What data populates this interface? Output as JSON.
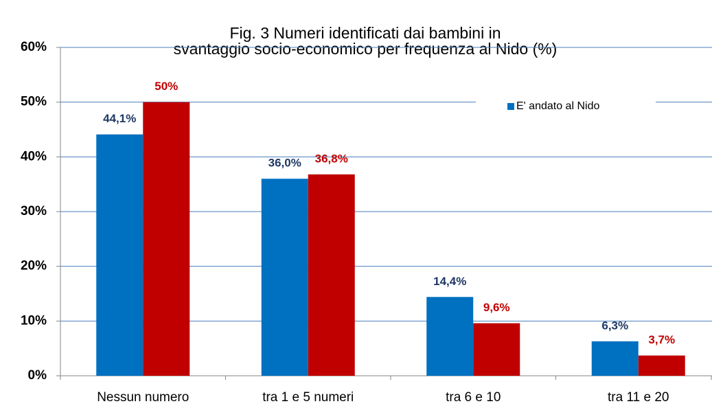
{
  "chart_data": {
    "type": "bar",
    "title": [
      "Fig. 3 Numeri identificati dai bambini in",
      "svantaggio socio-economico  per frequenza al Nido (%)"
    ],
    "categories": [
      "Nessun numero",
      "tra 1 e 5 numeri",
      "tra 6 e 10",
      "tra 11 e 20"
    ],
    "series": [
      {
        "name": "E' andato al Nido",
        "color": "#0070c0",
        "label_color": "#1f3864",
        "values": [
          44.1,
          36.0,
          14.4,
          6.3
        ],
        "value_labels": [
          "44,1%",
          "36,0%",
          "14,4%",
          "6,3%"
        ]
      },
      {
        "color": "#c00000",
        "label_color": "#c00000",
        "values": [
          50,
          36.8,
          9.6,
          3.7
        ],
        "value_labels": [
          "50%",
          "36,8%",
          "9,6%",
          "3,7%"
        ]
      }
    ],
    "ylim": [
      0,
      60
    ],
    "yticks": [
      {
        "value": 0,
        "label": "0%"
      },
      {
        "value": 10,
        "label": "10%"
      },
      {
        "value": 20,
        "label": "20%"
      },
      {
        "value": 30,
        "label": "30%"
      },
      {
        "value": 40,
        "label": "40%"
      },
      {
        "value": 50,
        "label": "50%"
      },
      {
        "value": 60,
        "label": "60%"
      }
    ],
    "grid": true,
    "grid_color": "#4a7ebb",
    "legend": "upper right"
  }
}
